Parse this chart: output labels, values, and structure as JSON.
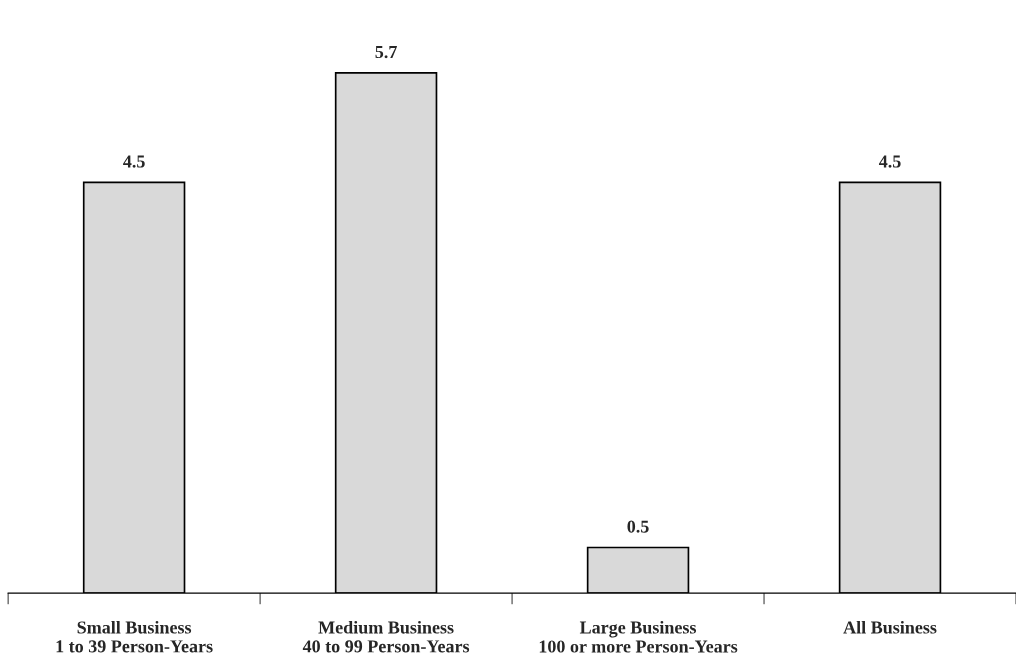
{
  "chart_data": {
    "type": "bar",
    "categories": [
      "Small Business\n1 to 39 Person-Years",
      "Medium Business\n40 to 99 Person-Years",
      "Large Business\n100 or more Person-Years",
      "All Business"
    ],
    "values": [
      4.5,
      5.7,
      0.5,
      4.5
    ],
    "color": "#d9d9d9",
    "data_labels": true
  }
}
